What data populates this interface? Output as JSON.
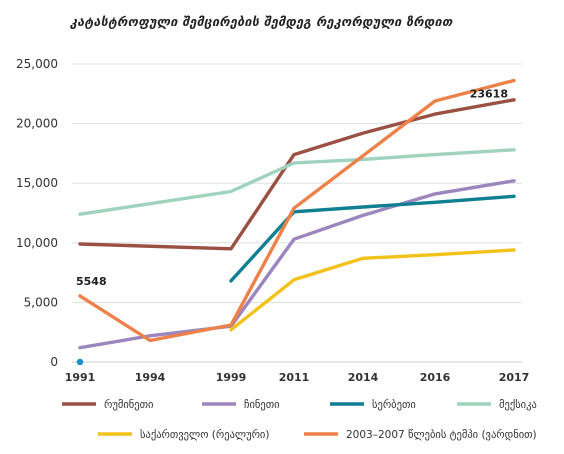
{
  "chart_data": {
    "type": "line",
    "title": "კატასტროფული შემცირების შემდეგ რეკორდული ზრდით",
    "xlabel": "",
    "ylabel": "",
    "categories": [
      "1991",
      "1994",
      "1999",
      "2011",
      "2014",
      "2016",
      "2017"
    ],
    "yticks": [
      "25,000",
      "20,000",
      "15,000",
      "10,000",
      "5,000",
      "0"
    ],
    "ylim": [
      0,
      25000
    ],
    "grid": true,
    "legend_position": "bottom",
    "series": [
      {
        "name": "რუმინეთი",
        "color": "#9a5143",
        "values": [
          9900,
          null,
          9500,
          17400,
          19200,
          20800,
          22000
        ]
      },
      {
        "name": "ჩინეთი",
        "color": "#9b86bd",
        "values": [
          1200,
          2200,
          3000,
          10300,
          12300,
          14100,
          15200
        ]
      },
      {
        "name": "სერბეთი",
        "color": "#0f7f92",
        "values": [
          null,
          null,
          6800,
          12600,
          13000,
          13400,
          13900
        ]
      },
      {
        "name": "მექსიკა",
        "color": "#9fd3bd",
        "values": [
          12400,
          null,
          14300,
          16700,
          17000,
          17400,
          17800
        ]
      },
      {
        "name": "საქართველო (რეალური)",
        "color": "#f2c21b",
        "values": [
          null,
          null,
          2700,
          6900,
          8700,
          9000,
          9400
        ]
      },
      {
        "name": "2003–2007 წლების ტემპი (ვარდნით)",
        "color": "#ee8149",
        "values": [
          5548,
          1800,
          3100,
          12900,
          17300,
          21900,
          23618
        ]
      }
    ],
    "annotations": [
      {
        "text": "5548",
        "x": "1991",
        "y": 5548
      },
      {
        "text": "23618",
        "x": "2017",
        "y": 23618
      }
    ],
    "marker": {
      "x": "1991",
      "y": 0,
      "color": "#1a8fd0"
    }
  }
}
